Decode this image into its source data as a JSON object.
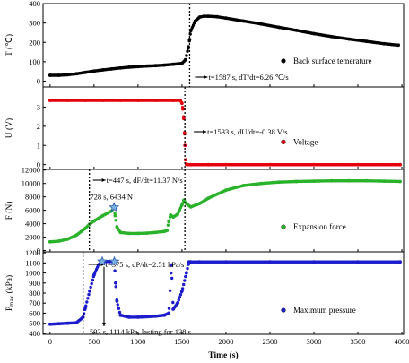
{
  "chart_data": [
    {
      "type": "scatter",
      "ylabel": "T (℃)",
      "ylim": [
        -30,
        400
      ],
      "yticks": [
        "0",
        "100",
        "200",
        "300",
        "400"
      ],
      "xlim": [
        -80,
        4020
      ],
      "legend_position": "right",
      "color": "#000000",
      "series": [
        {
          "name": "Back surface temerature",
          "x": [
            0,
            100,
            200,
            300,
            400,
            500,
            600,
            700,
            800,
            900,
            1000,
            1100,
            1200,
            1300,
            1400,
            1500,
            1540,
            1570,
            1587,
            1600,
            1650,
            1700,
            1750,
            1800,
            1900,
            2000,
            2200,
            2400,
            2600,
            2800,
            3000,
            3200,
            3400,
            3600,
            3800,
            3960
          ],
          "y": [
            30,
            30,
            33,
            38,
            45,
            52,
            58,
            63,
            68,
            72,
            75,
            78,
            80,
            83,
            87,
            92,
            110,
            170,
            215,
            260,
            310,
            330,
            335,
            335,
            332,
            325,
            310,
            295,
            278,
            262,
            245,
            230,
            217,
            205,
            193,
            186
          ]
        }
      ],
      "annotation": "t=1587 s, dT/dt=6.26 ℃/s"
    },
    {
      "type": "scatter",
      "ylabel": "U (V)",
      "ylim": [
        -0.25,
        4.05
      ],
      "yticks": [
        "0",
        "1",
        "2",
        "3"
      ],
      "xlim": [
        -80,
        4020
      ],
      "legend_position": "right",
      "color": "#e3000b",
      "series": [
        {
          "name": "Voltage",
          "x": [
            0,
            200,
            400,
            600,
            800,
            1000,
            1200,
            1400,
            1480,
            1500,
            1510,
            1520,
            1530,
            1533,
            1540,
            1550,
            1560,
            1600,
            1800,
            2000,
            2500,
            3000,
            3500,
            3980
          ],
          "y": [
            3.35,
            3.35,
            3.35,
            3.35,
            3.35,
            3.35,
            3.35,
            3.35,
            3.35,
            3.2,
            2.9,
            2.4,
            1.6,
            1.0,
            0.25,
            0.02,
            0.0,
            0.0,
            0.0,
            0.0,
            0.0,
            0.0,
            0.0,
            0.0
          ]
        }
      ],
      "annotation": "t=1533 s, dU/dt=-0.38 V/s"
    },
    {
      "type": "scatter",
      "ylabel": "F (N)",
      "ylim": [
        -200,
        12100
      ],
      "yticks": [
        "0",
        "2000",
        "4000",
        "6000",
        "8000",
        "10000",
        "12000"
      ],
      "xlim": [
        -80,
        4020
      ],
      "legend_position": "right",
      "color": "#2ab32a",
      "series": [
        {
          "name": "Expansion force",
          "x": [
            0,
            100,
            200,
            300,
            400,
            447,
            500,
            600,
            700,
            728,
            740,
            760,
            800,
            900,
            1000,
            1100,
            1200,
            1300,
            1330,
            1350,
            1370,
            1400,
            1450,
            1500,
            1520,
            1550,
            1600,
            1700,
            1800,
            2000,
            2200,
            2400,
            2600,
            2800,
            3000,
            3200,
            3400,
            3600,
            3800,
            3980
          ],
          "y": [
            1300,
            1400,
            1700,
            2300,
            3300,
            3900,
            4400,
            5200,
            5900,
            6434,
            5200,
            3500,
            2700,
            2550,
            2550,
            2600,
            2700,
            2850,
            3000,
            4300,
            5300,
            5000,
            5400,
            6800,
            7500,
            7000,
            6500,
            7000,
            7800,
            9000,
            9700,
            10000,
            10200,
            10300,
            10350,
            10400,
            10400,
            10400,
            10350,
            10300
          ]
        }
      ],
      "annotations": [
        "t=447 s, dF/dt=11.37 N/s",
        "728 s, 6434 N"
      ]
    },
    {
      "type": "scatter",
      "ylabel": "Pmax (kPa)",
      "ylim": [
        390,
        1210
      ],
      "yticks": [
        "400",
        "500",
        "600",
        "700",
        "800",
        "900",
        "1000",
        "1100",
        "1200"
      ],
      "xlabel": "Time (s)",
      "xlim": [
        -80,
        4020
      ],
      "xticks": [
        "0",
        "500",
        "1000",
        "1500",
        "2000",
        "2500",
        "3000",
        "3500",
        "4000"
      ],
      "legend_position": "right",
      "color": "#1c1ccc",
      "series": [
        {
          "name": "Maximum pressure",
          "x": [
            0,
            100,
            200,
            300,
            375,
            400,
            450,
            500,
            550,
            593,
            620,
            680,
            731,
            745,
            760,
            800,
            900,
            1000,
            1100,
            1200,
            1300,
            1350,
            1380,
            1400,
            1450,
            1500,
            1550,
            1580,
            1600,
            1700,
            2000,
            2500,
            3000,
            3500,
            3980
          ],
          "y": [
            490,
            495,
            500,
            505,
            560,
            650,
            820,
            980,
            1080,
            1114,
            1114,
            1114,
            1114,
            900,
            720,
            580,
            560,
            560,
            565,
            570,
            580,
            600,
            1080,
            640,
            700,
            820,
            1000,
            1110,
            1110,
            1110,
            1110,
            1110,
            1110,
            1110,
            1110
          ]
        }
      ],
      "annotations": [
        "t=375 s, dP/dt=2.51 kPa/s",
        "593 s, 1114 kPa, lasting for 138 s"
      ]
    }
  ],
  "axes": {
    "xlabel": "Time (s)",
    "ylabel_pmax_main": "P",
    "ylabel_pmax_sub": "max",
    "ylabel_pmax_unit": " (kPa)"
  },
  "event_lines": [
    1587,
    1533,
    447,
    375
  ]
}
